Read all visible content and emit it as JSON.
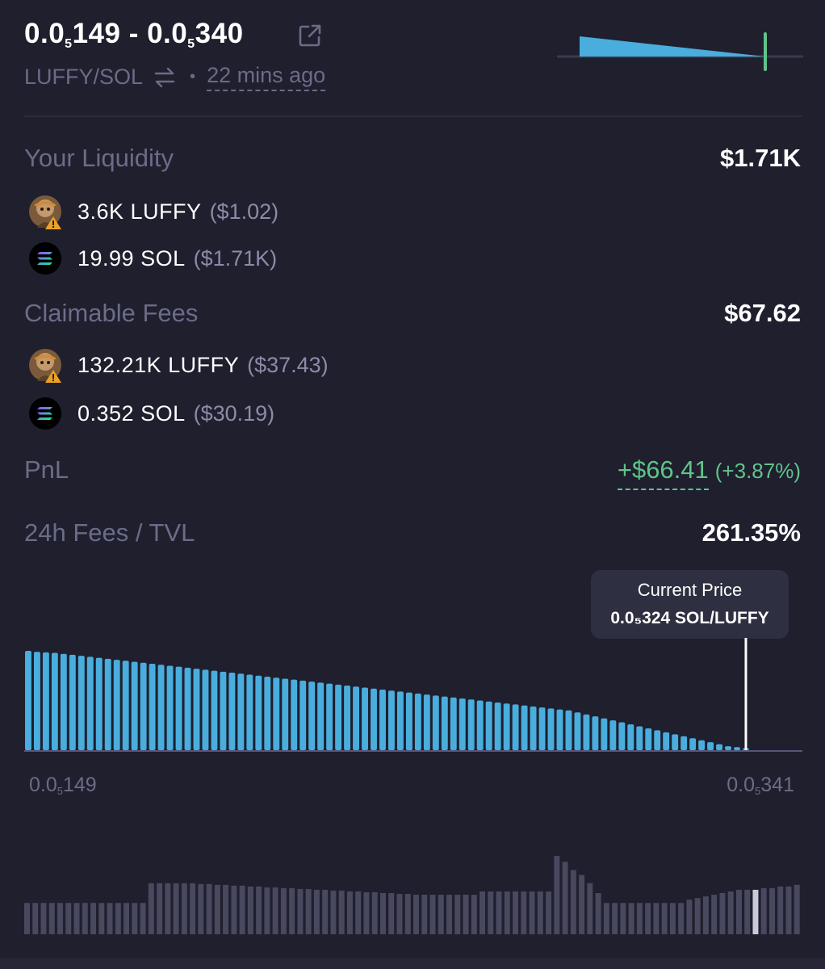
{
  "header": {
    "range_lo_prefix": "0.0",
    "range_lo_sub": "5",
    "range_lo_digits": "149",
    "range_sep": " - ",
    "range_hi_prefix": "0.0",
    "range_hi_sub": "5",
    "range_hi_digits": "340",
    "pair": "LUFFY/SOL",
    "dot": "•",
    "time_ago": "22 mins ago"
  },
  "liquidity": {
    "label": "Your Liquidity",
    "total": "$1.71K",
    "tokens": [
      {
        "icon": "luffy-token-icon",
        "amount": "3.6K LUFFY",
        "usd": "($1.02)"
      },
      {
        "icon": "solana-token-icon",
        "amount": "19.99 SOL",
        "usd": "($1.71K)"
      }
    ]
  },
  "fees": {
    "label": "Claimable Fees",
    "total": "$67.62",
    "tokens": [
      {
        "icon": "luffy-token-icon",
        "amount": "132.21K LUFFY",
        "usd": "($37.43)"
      },
      {
        "icon": "solana-token-icon",
        "amount": "0.352 SOL",
        "usd": "($30.19)"
      }
    ]
  },
  "pnl": {
    "label": "PnL",
    "amount": "+$66.41",
    "percent": "(+3.87%)"
  },
  "tvl": {
    "label": "24h Fees / TVL",
    "value": "261.35%"
  },
  "tooltip": {
    "title": "Current Price",
    "value": "0.0₅324 SOL/LUFFY"
  },
  "axis": {
    "min_prefix": "0.0",
    "min_sub": "5",
    "min_digits": "149",
    "max_prefix": "0.0",
    "max_sub": "5",
    "max_digits": "341"
  },
  "colors": {
    "bar": "#49addd",
    "current_price_line": "#ffffff",
    "volume_bar": "#48485f",
    "volume_highlight": "#c9c9d8",
    "positive": "#5fc48a"
  },
  "chart_data": [
    {
      "type": "bar",
      "description_series": "liquidity distribution",
      "bins": 82,
      "values": [
        100,
        99,
        98.5,
        98,
        97,
        96,
        95,
        94,
        93,
        92,
        91,
        90,
        89,
        88,
        87,
        86,
        85,
        84,
        83,
        82,
        81,
        80,
        79,
        78,
        77,
        76,
        75,
        74,
        73,
        72,
        71,
        70,
        69,
        68,
        67,
        66,
        65,
        64,
        63,
        62,
        61,
        60,
        59,
        58,
        57,
        56,
        55,
        54,
        53,
        52,
        51,
        50,
        49,
        48,
        47,
        46,
        45,
        44,
        43,
        42,
        41,
        40,
        38,
        36,
        34,
        32,
        30,
        28,
        26,
        24,
        22,
        20,
        18,
        16,
        14,
        12,
        10,
        8,
        6,
        4,
        3,
        2
      ],
      "current_index": 81,
      "xlim": [
        "0.0₅149",
        "0.0₅341"
      ]
    },
    {
      "type": "bar",
      "description_series": "volume",
      "values": [
        38,
        38,
        38,
        38,
        38,
        38,
        38,
        38,
        38,
        38,
        38,
        38,
        38,
        38,
        38,
        62,
        62,
        62,
        62,
        62,
        62,
        61,
        61,
        60,
        60,
        59,
        59,
        58,
        58,
        57,
        57,
        56,
        56,
        55,
        55,
        54,
        54,
        53,
        53,
        52,
        52,
        51,
        51,
        50,
        50,
        49,
        49,
        48,
        48,
        48,
        48,
        48,
        48,
        48,
        48,
        48,
        48,
        48,
        48,
        48,
        48,
        48,
        48,
        48,
        48,
        48,
        48,
        48,
        48,
        48,
        48,
        48,
        48,
        48,
        48,
        48,
        48,
        48,
        48,
        48,
        48,
        48,
        48,
        48,
        48,
        48,
        48,
        48,
        48,
        48,
        48,
        48,
        48,
        48
      ],
      "overrides": {
        "55": 52,
        "56": 52,
        "57": 52,
        "58": 52,
        "59": 52,
        "60": 52,
        "61": 52,
        "62": 52,
        "63": 52,
        "64": 95,
        "65": 88,
        "66": 78,
        "67": 72,
        "68": 62,
        "69": 50,
        "70": 38,
        "71": 38,
        "72": 38,
        "73": 38,
        "74": 38,
        "75": 38,
        "76": 38,
        "77": 38,
        "78": 38,
        "79": 38,
        "80": 42,
        "81": 44,
        "82": 46,
        "83": 48,
        "84": 50,
        "85": 52,
        "86": 54,
        "87": 54,
        "88": 54,
        "89": 56,
        "90": 56,
        "91": 58,
        "92": 58,
        "93": 60
      },
      "highlight_index": 88
    }
  ]
}
